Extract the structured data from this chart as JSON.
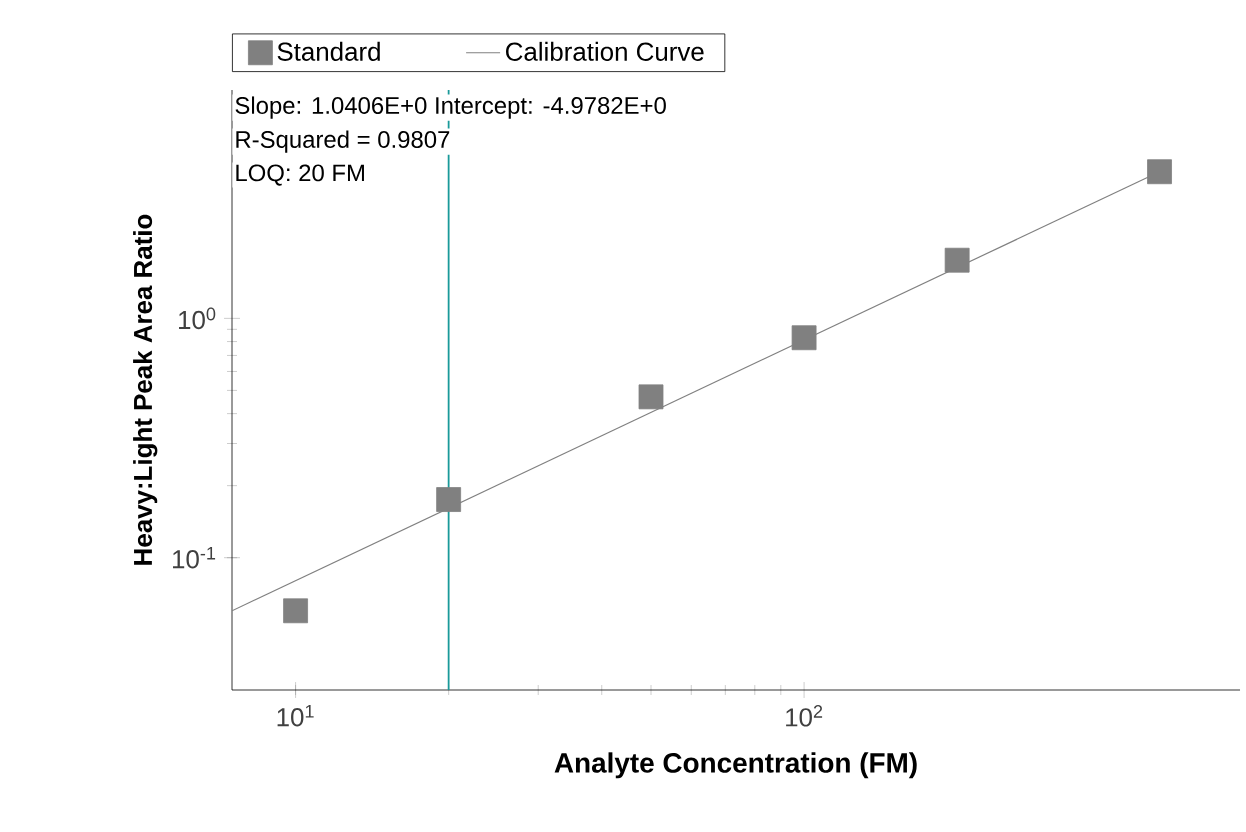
{
  "chart_data": {
    "type": "scatter",
    "xlabel": "Analyte Concentration (FM)",
    "ylabel": "Heavy:Light Peak Area Ratio",
    "x": [
      10,
      20,
      50,
      100,
      200,
      500
    ],
    "series": [
      {
        "name": "Standard",
        "color": "#808080",
        "marker": "square",
        "values": [
          0.06,
          0.175,
          0.47,
          0.83,
          1.75,
          4.1
        ]
      },
      {
        "name": "Calibration Curve",
        "type": "line",
        "color": "#808080",
        "marker": "none",
        "line_style": "solid",
        "x": [
          7.5,
          500
        ],
        "values": [
          0.06,
          4.1
        ]
      }
    ],
    "log": "xy",
    "xlim": [
      7.5,
      720
    ],
    "ylim": [
      0.028,
      9
    ],
    "xticks": [
      {
        "value": 10,
        "label": "10$^{1}$"
      },
      {
        "value": 100,
        "label": "10$^{2}$"
      }
    ],
    "yticks": [
      {
        "value": 0.1,
        "label": "10$^{-1}$"
      },
      {
        "value": 1,
        "label": "10$^{0}$"
      }
    ],
    "ref_lines": [
      {
        "axis": "x",
        "value": 20,
        "color": "#1a9a9a",
        "line_style": "solid"
      }
    ],
    "annotations": [
      "Slope: 1.0406E+0 Intercept: -4.9782E+0",
      "R-Squared = 0.9807",
      "LOQ: 20 FM"
    ],
    "grid": false,
    "legend": "top"
  }
}
